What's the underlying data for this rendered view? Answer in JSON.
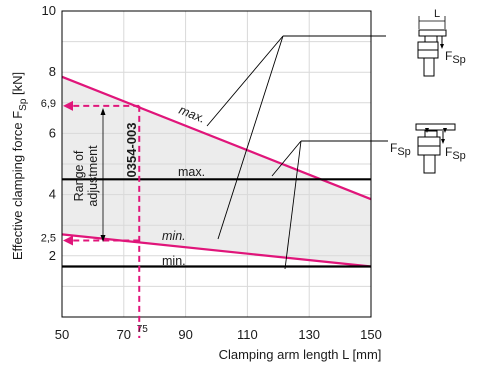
{
  "chart_data": {
    "type": "line",
    "xlabel": "Clamping arm length L [mm]",
    "ylabel_main": "Effective clamping force F",
    "ylabel_sub": "Sp",
    "ylabel_unit": " [kN]",
    "xlim": [
      50,
      150
    ],
    "ylim": [
      0,
      10
    ],
    "x_ticks": [
      50,
      70,
      90,
      110,
      130,
      150
    ],
    "y_ticks": [
      2,
      4,
      6,
      8,
      10
    ],
    "series": [
      {
        "name": "max.",
        "color": "#e0157a",
        "x": [
          50,
          150
        ],
        "y": [
          7.85,
          3.85
        ]
      },
      {
        "name": "min.",
        "color": "#e0157a",
        "x": [
          50,
          150
        ],
        "y": [
          2.7,
          1.65
        ]
      },
      {
        "name": "max.",
        "color": "#000000",
        "x": [
          50,
          150
        ],
        "y": [
          4.5,
          4.5
        ]
      },
      {
        "name": "min.",
        "color": "#000000",
        "x": [
          50,
          150
        ],
        "y": [
          1.65,
          1.65
        ]
      }
    ],
    "reference": {
      "x": 75,
      "x_label": "75",
      "y_high": 6.9,
      "y_high_label": "6,9",
      "y_low": 2.5,
      "y_low_label": "2,5",
      "part_number": "0354-003",
      "color": "#e0157a"
    },
    "range_label_line1": "Range of",
    "range_label_line2": "adjustment",
    "annotations": {
      "diagram_top_dim": "L",
      "diagram_top_force": "F",
      "diagram_top_force_sub": "Sp",
      "diagram_bottom_force_left": "F",
      "diagram_bottom_force_left_sub": "Sp",
      "diagram_bottom_force_right": "F",
      "diagram_bottom_force_right_sub": "Sp"
    },
    "grid": true,
    "colors": {
      "accent": "#e0157a",
      "shade": "#ececec",
      "axis": "#000000"
    }
  }
}
